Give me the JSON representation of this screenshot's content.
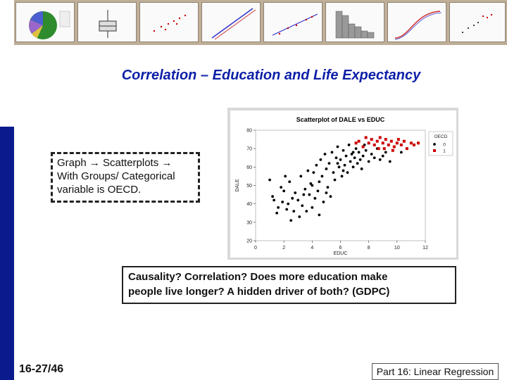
{
  "slide": {
    "title": "Correlation – Education and Life Expectancy",
    "note_lines": [
      "Graph → Scatterplots →",
      "With Groups/ Categorical",
      "variable is OECD."
    ],
    "question_lines": [
      "Causality? Correlation? Does more education make",
      "people live longer? A hidden driver of both? (GDPC)"
    ],
    "slide_number": "16-27/46",
    "footer": "Part 16: Linear Regression"
  },
  "thumbnails": [
    "pie-chart",
    "boxplot",
    "scatter",
    "probability-plot",
    "fitted-scatter",
    "histogram",
    "cumulative-curve",
    "grouped-scatter"
  ],
  "colors": {
    "title": "#0d1fa8",
    "sidebar": "#0b1a8c",
    "strip": "#bfae98",
    "oecd_no": "#000000",
    "oecd_yes": "#cc0000"
  },
  "chart_data": {
    "type": "scatter",
    "title": "Scatterplot of DALE vs EDUC",
    "xlabel": "EDUC",
    "ylabel": "DALE",
    "xlim": [
      0,
      12
    ],
    "ylim": [
      20,
      80
    ],
    "xticks": [
      0,
      2,
      4,
      6,
      8,
      10,
      12
    ],
    "yticks": [
      20,
      30,
      40,
      50,
      60,
      70,
      80
    ],
    "legend": {
      "title": "OECD",
      "entries": [
        "0",
        "1"
      ],
      "position": "top-right"
    },
    "series": [
      {
        "name": "0",
        "color": "#000000",
        "marker": "circle",
        "points": [
          [
            1.0,
            53
          ],
          [
            1.2,
            44
          ],
          [
            1.3,
            42
          ],
          [
            1.5,
            35
          ],
          [
            1.6,
            38
          ],
          [
            1.8,
            49
          ],
          [
            1.9,
            41
          ],
          [
            2.0,
            47
          ],
          [
            2.2,
            37
          ],
          [
            2.3,
            40
          ],
          [
            2.4,
            52
          ],
          [
            2.5,
            31
          ],
          [
            2.6,
            43
          ],
          [
            2.7,
            36
          ],
          [
            2.8,
            46
          ],
          [
            3.0,
            42
          ],
          [
            3.1,
            33
          ],
          [
            3.2,
            55
          ],
          [
            3.3,
            39
          ],
          [
            3.5,
            48
          ],
          [
            3.6,
            36
          ],
          [
            3.8,
            45
          ],
          [
            3.9,
            51
          ],
          [
            4.0,
            38
          ],
          [
            4.1,
            57
          ],
          [
            4.2,
            43
          ],
          [
            4.3,
            61
          ],
          [
            4.4,
            47
          ],
          [
            4.5,
            34
          ],
          [
            4.6,
            64
          ],
          [
            4.7,
            55
          ],
          [
            4.8,
            41
          ],
          [
            4.9,
            67
          ],
          [
            5.0,
            59
          ],
          [
            5.1,
            49
          ],
          [
            5.2,
            62
          ],
          [
            5.3,
            44
          ],
          [
            5.4,
            68
          ],
          [
            5.5,
            57
          ],
          [
            5.6,
            53
          ],
          [
            5.7,
            65
          ],
          [
            5.8,
            71
          ],
          [
            5.9,
            60
          ],
          [
            6.0,
            64
          ],
          [
            6.1,
            55
          ],
          [
            6.2,
            69
          ],
          [
            6.3,
            61
          ],
          [
            6.4,
            66
          ],
          [
            6.5,
            57
          ],
          [
            6.6,
            72
          ],
          [
            6.7,
            63
          ],
          [
            6.8,
            67
          ],
          [
            6.9,
            60
          ],
          [
            7.0,
            65
          ],
          [
            7.1,
            70
          ],
          [
            7.2,
            62
          ],
          [
            7.3,
            68
          ],
          [
            7.4,
            64
          ],
          [
            7.5,
            59
          ],
          [
            7.6,
            66
          ],
          [
            7.8,
            69
          ],
          [
            8.0,
            63
          ],
          [
            8.2,
            67
          ],
          [
            8.4,
            65
          ],
          [
            8.6,
            70
          ],
          [
            8.8,
            64
          ],
          [
            9.0,
            66
          ],
          [
            9.2,
            68
          ],
          [
            9.5,
            63
          ],
          [
            10.3,
            68
          ],
          [
            3.7,
            58
          ],
          [
            4.5,
            52
          ],
          [
            5.0,
            46
          ],
          [
            2.1,
            55
          ],
          [
            6.2,
            58
          ],
          [
            3.4,
            45
          ],
          [
            4.0,
            50
          ],
          [
            5.8,
            62
          ],
          [
            6.9,
            68
          ],
          [
            7.7,
            72
          ]
        ]
      },
      {
        "name": "1",
        "color": "#cc0000",
        "marker": "square",
        "points": [
          [
            7.1,
            73
          ],
          [
            7.3,
            74
          ],
          [
            7.6,
            71
          ],
          [
            7.8,
            76
          ],
          [
            8.0,
            73
          ],
          [
            8.2,
            75
          ],
          [
            8.4,
            72
          ],
          [
            8.6,
            74
          ],
          [
            8.8,
            76
          ],
          [
            9.0,
            73
          ],
          [
            9.1,
            70
          ],
          [
            9.2,
            75
          ],
          [
            9.4,
            72
          ],
          [
            9.6,
            74
          ],
          [
            9.8,
            71
          ],
          [
            10.0,
            73
          ],
          [
            10.1,
            75
          ],
          [
            10.3,
            72
          ],
          [
            10.5,
            74
          ],
          [
            10.7,
            70
          ],
          [
            11.0,
            73
          ],
          [
            11.2,
            72
          ],
          [
            9.7,
            69
          ],
          [
            8.7,
            70
          ],
          [
            11.5,
            73
          ]
        ]
      }
    ]
  }
}
